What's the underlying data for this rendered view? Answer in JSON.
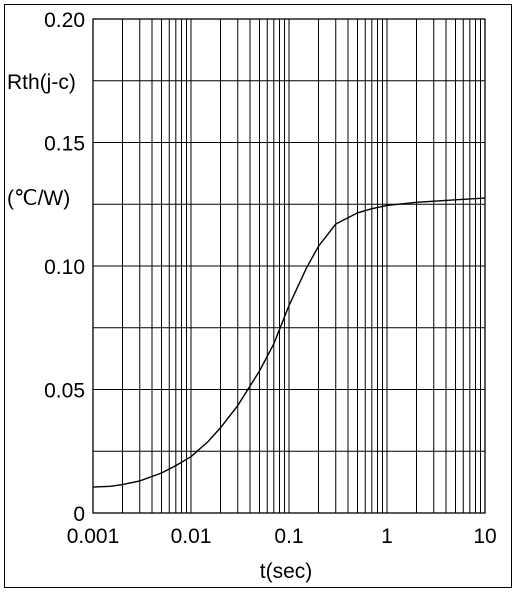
{
  "chart_data": {
    "type": "line",
    "title": "",
    "xlabel": "t(sec)",
    "ylabel_lines": [
      "Rth(j-c)",
      "(℃/W)"
    ],
    "x_scale": "log",
    "xlim": [
      0.001,
      10
    ],
    "ylim": [
      0,
      0.2
    ],
    "grid": true,
    "x_ticks": [
      0.001,
      0.01,
      0.1,
      1,
      10
    ],
    "x_tick_labels": [
      "0.001",
      "0.01",
      "0.1",
      "1",
      "10"
    ],
    "y_ticks": [
      0,
      0.05,
      0.1,
      0.15,
      0.2
    ],
    "y_tick_labels": [
      "0",
      "0.05",
      "0.10",
      "0.15",
      "0.20"
    ],
    "y_minor_step": 0.025,
    "series": [
      {
        "name": "",
        "color": "#000000",
        "x": [
          0.001,
          0.0015,
          0.002,
          0.003,
          0.005,
          0.007,
          0.01,
          0.015,
          0.02,
          0.03,
          0.05,
          0.07,
          0.1,
          0.15,
          0.2,
          0.3,
          0.5,
          0.7,
          1,
          2,
          5,
          10
        ],
        "y": [
          0.0105,
          0.0108,
          0.0115,
          0.013,
          0.0162,
          0.0192,
          0.0228,
          0.029,
          0.0345,
          0.0435,
          0.0575,
          0.0685,
          0.084,
          0.099,
          0.108,
          0.117,
          0.1215,
          0.1232,
          0.1245,
          0.1258,
          0.1268,
          0.1275
        ]
      }
    ]
  }
}
